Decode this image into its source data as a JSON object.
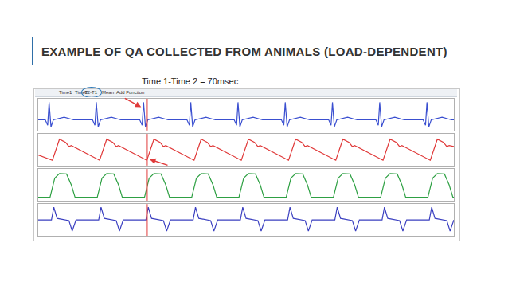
{
  "slide": {
    "title": "EXAMPLE OF QA COLLECTED FROM ANIMALS (LOAD-DEPENDENT)",
    "note": "Time 1-Time 2 = 70msec",
    "toolbar": [
      "Time1",
      "Time2",
      "T2-T1",
      "Mean",
      "Add Function"
    ]
  },
  "chart_data": [
    {
      "type": "line",
      "color": "#3a4fd0",
      "xlim": [
        0,
        8.8
      ],
      "ylim": [
        -0.6,
        1.2
      ],
      "tick_labels": false,
      "cursor_x": 2.3,
      "x": [
        0,
        0.15,
        0.2,
        0.23,
        0.27,
        0.32,
        0.55,
        0.75,
        1.15,
        1.2,
        1.23,
        1.27,
        1.32,
        1.55,
        1.75,
        2.15,
        2.2,
        2.23,
        2.27,
        2.32,
        2.55,
        2.75,
        3.15,
        3.2,
        3.23,
        3.27,
        3.32,
        3.55,
        3.75,
        4.15,
        4.2,
        4.23,
        4.27,
        4.32,
        4.55,
        4.75,
        5.15,
        5.2,
        5.23,
        5.27,
        5.32,
        5.55,
        5.75,
        6.15,
        6.2,
        6.23,
        6.27,
        6.32,
        6.55,
        6.75,
        7.15,
        7.2,
        7.23,
        7.27,
        7.32,
        7.55,
        7.75,
        8.15,
        8.2,
        8.23,
        8.27,
        8.32,
        8.55,
        8.75,
        8.8
      ],
      "values": [
        0,
        0,
        -0.3,
        1,
        -0.4,
        0,
        0.15,
        0,
        0,
        -0.3,
        1,
        -0.4,
        0,
        0.15,
        0,
        0,
        -0.3,
        1,
        -0.4,
        0,
        0.15,
        0,
        0,
        -0.3,
        1,
        -0.4,
        0,
        0.15,
        0,
        0,
        -0.3,
        1,
        -0.4,
        0,
        0.15,
        0,
        0,
        -0.3,
        1,
        -0.4,
        0,
        0.15,
        0,
        0,
        -0.3,
        1,
        -0.4,
        0,
        0.15,
        0,
        0,
        -0.3,
        1,
        -0.4,
        0,
        0.15,
        0,
        0,
        -0.3,
        1,
        -0.4,
        0,
        0.15,
        0,
        0
      ]
    },
    {
      "type": "line",
      "color": "#e03a3a",
      "xlim": [
        0,
        8.8
      ],
      "ylim": [
        50,
        110
      ],
      "tick_labels": false,
      "cursor_x": 2.3,
      "x": [
        0,
        0.3,
        0.45,
        0.58,
        0.65,
        0.7,
        1.3,
        1.45,
        1.58,
        1.65,
        1.7,
        2.3,
        2.45,
        2.58,
        2.65,
        2.7,
        3.3,
        3.45,
        3.58,
        3.65,
        3.7,
        4.3,
        4.45,
        4.58,
        4.65,
        4.7,
        5.3,
        5.45,
        5.58,
        5.65,
        5.7,
        6.3,
        6.45,
        6.58,
        6.65,
        6.7,
        7.3,
        7.45,
        7.58,
        7.65,
        7.7,
        8.3,
        8.45,
        8.58,
        8.65,
        8.7,
        8.8
      ],
      "values": [
        70,
        60,
        100,
        94,
        86,
        88,
        60,
        100,
        94,
        86,
        88,
        60,
        100,
        94,
        86,
        88,
        60,
        100,
        94,
        86,
        88,
        60,
        100,
        94,
        86,
        88,
        60,
        100,
        94,
        86,
        88,
        60,
        100,
        94,
        86,
        88,
        60,
        100,
        94,
        86,
        88,
        60,
        100,
        94,
        86,
        88,
        86
      ]
    },
    {
      "type": "line",
      "color": "#2ea043",
      "xlim": [
        0,
        8.8
      ],
      "ylim": [
        -10,
        130
      ],
      "tick_labels": false,
      "cursor_x": 2.3,
      "x": [
        0,
        0.25,
        0.35,
        0.45,
        0.6,
        0.7,
        0.78,
        1.25,
        1.35,
        1.45,
        1.6,
        1.7,
        1.78,
        2.25,
        2.35,
        2.45,
        2.6,
        2.7,
        2.78,
        3.25,
        3.35,
        3.45,
        3.6,
        3.7,
        3.78,
        4.25,
        4.35,
        4.45,
        4.6,
        4.7,
        4.78,
        5.25,
        5.35,
        5.45,
        5.6,
        5.7,
        5.78,
        6.25,
        6.35,
        6.45,
        6.6,
        6.7,
        6.78,
        7.25,
        7.35,
        7.45,
        7.6,
        7.7,
        7.78,
        8.25,
        8.35,
        8.45,
        8.6,
        8.7,
        8.78,
        8.8
      ],
      "values": [
        5,
        5,
        90,
        110,
        108,
        60,
        5,
        5,
        90,
        110,
        108,
        60,
        5,
        5,
        90,
        110,
        108,
        60,
        5,
        5,
        90,
        110,
        108,
        60,
        5,
        5,
        90,
        110,
        108,
        60,
        5,
        5,
        90,
        110,
        108,
        60,
        5,
        5,
        90,
        110,
        108,
        60,
        5,
        5,
        90,
        110,
        108,
        60,
        5,
        5,
        90,
        110,
        108,
        60,
        5,
        5
      ]
    },
    {
      "type": "line",
      "color": "#3a3fc0",
      "xlim": [
        0,
        8.8
      ],
      "ylim": [
        -5000,
        5000
      ],
      "tick_labels": false,
      "cursor_x": 2.3,
      "x": [
        0,
        0.28,
        0.33,
        0.4,
        0.65,
        0.72,
        0.8,
        1.28,
        1.33,
        1.4,
        1.65,
        1.72,
        1.8,
        2.28,
        2.33,
        2.4,
        2.65,
        2.72,
        2.8,
        3.28,
        3.33,
        3.4,
        3.65,
        3.72,
        3.8,
        4.28,
        4.33,
        4.4,
        4.65,
        4.72,
        4.8,
        5.28,
        5.33,
        5.4,
        5.65,
        5.72,
        5.8,
        6.28,
        6.33,
        6.4,
        6.65,
        6.72,
        6.8,
        7.28,
        7.33,
        7.4,
        7.65,
        7.72,
        7.8,
        8.28,
        8.33,
        8.4,
        8.65,
        8.72,
        8.8,
        8.8
      ],
      "values": [
        0,
        0,
        4000,
        500,
        -200,
        -3500,
        0,
        0,
        4000,
        500,
        -200,
        -3500,
        0,
        0,
        4000,
        500,
        -200,
        -3500,
        0,
        0,
        4000,
        500,
        -200,
        -3500,
        0,
        0,
        4000,
        500,
        -200,
        -3500,
        0,
        0,
        4000,
        500,
        -200,
        -3500,
        0,
        0,
        4000,
        500,
        -200,
        -3500,
        0,
        0,
        4000,
        500,
        -200,
        -3500,
        0,
        0,
        4000,
        500,
        -200,
        -3500,
        0,
        0
      ]
    }
  ]
}
